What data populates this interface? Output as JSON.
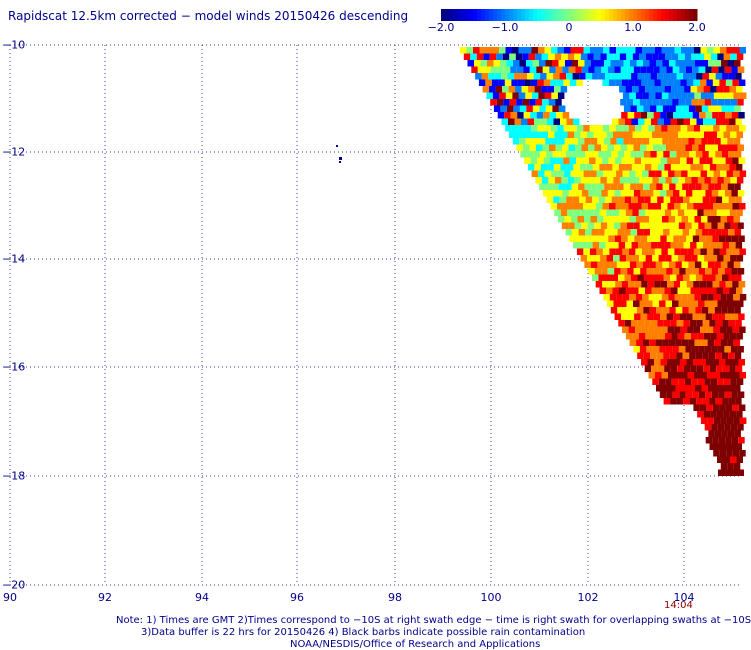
{
  "title": "Rapidscat 12.5km corrected − model winds 20150426 descending",
  "colorbar": {
    "tick_labels": [
      "−2.0",
      "−1.0",
      "0",
      "1.0",
      "2.0"
    ],
    "tick_values": [
      -2.0,
      -1.0,
      0,
      1.0,
      2.0
    ],
    "colors": [
      "#00007f",
      "#0000ff",
      "#007fff",
      "#00ffff",
      "#7fff7f",
      "#ffff00",
      "#ff7f00",
      "#ff0000",
      "#7f0000"
    ]
  },
  "map": {
    "lon_ticks": [
      "90",
      "92",
      "94",
      "96",
      "98",
      "100",
      "102",
      "104"
    ],
    "lat_ticks": [
      "−10",
      "−12",
      "−14",
      "−16",
      "−18",
      "−20"
    ],
    "lon_range": [
      90,
      105
    ],
    "lat_range": [
      -20,
      -10
    ],
    "swath_time": "14:04"
  },
  "notes": {
    "line1": "Note: 1) Times are GMT 2)Times correspond to −10S at right swath edge − time is right swath for overlapping swaths at −10S",
    "line2": "3)Data buffer is 22 hrs for 20150426 4) Black barbs indicate possible rain contamination",
    "line3": "NOAA/NESDIS/Office of Research and Applications"
  }
}
